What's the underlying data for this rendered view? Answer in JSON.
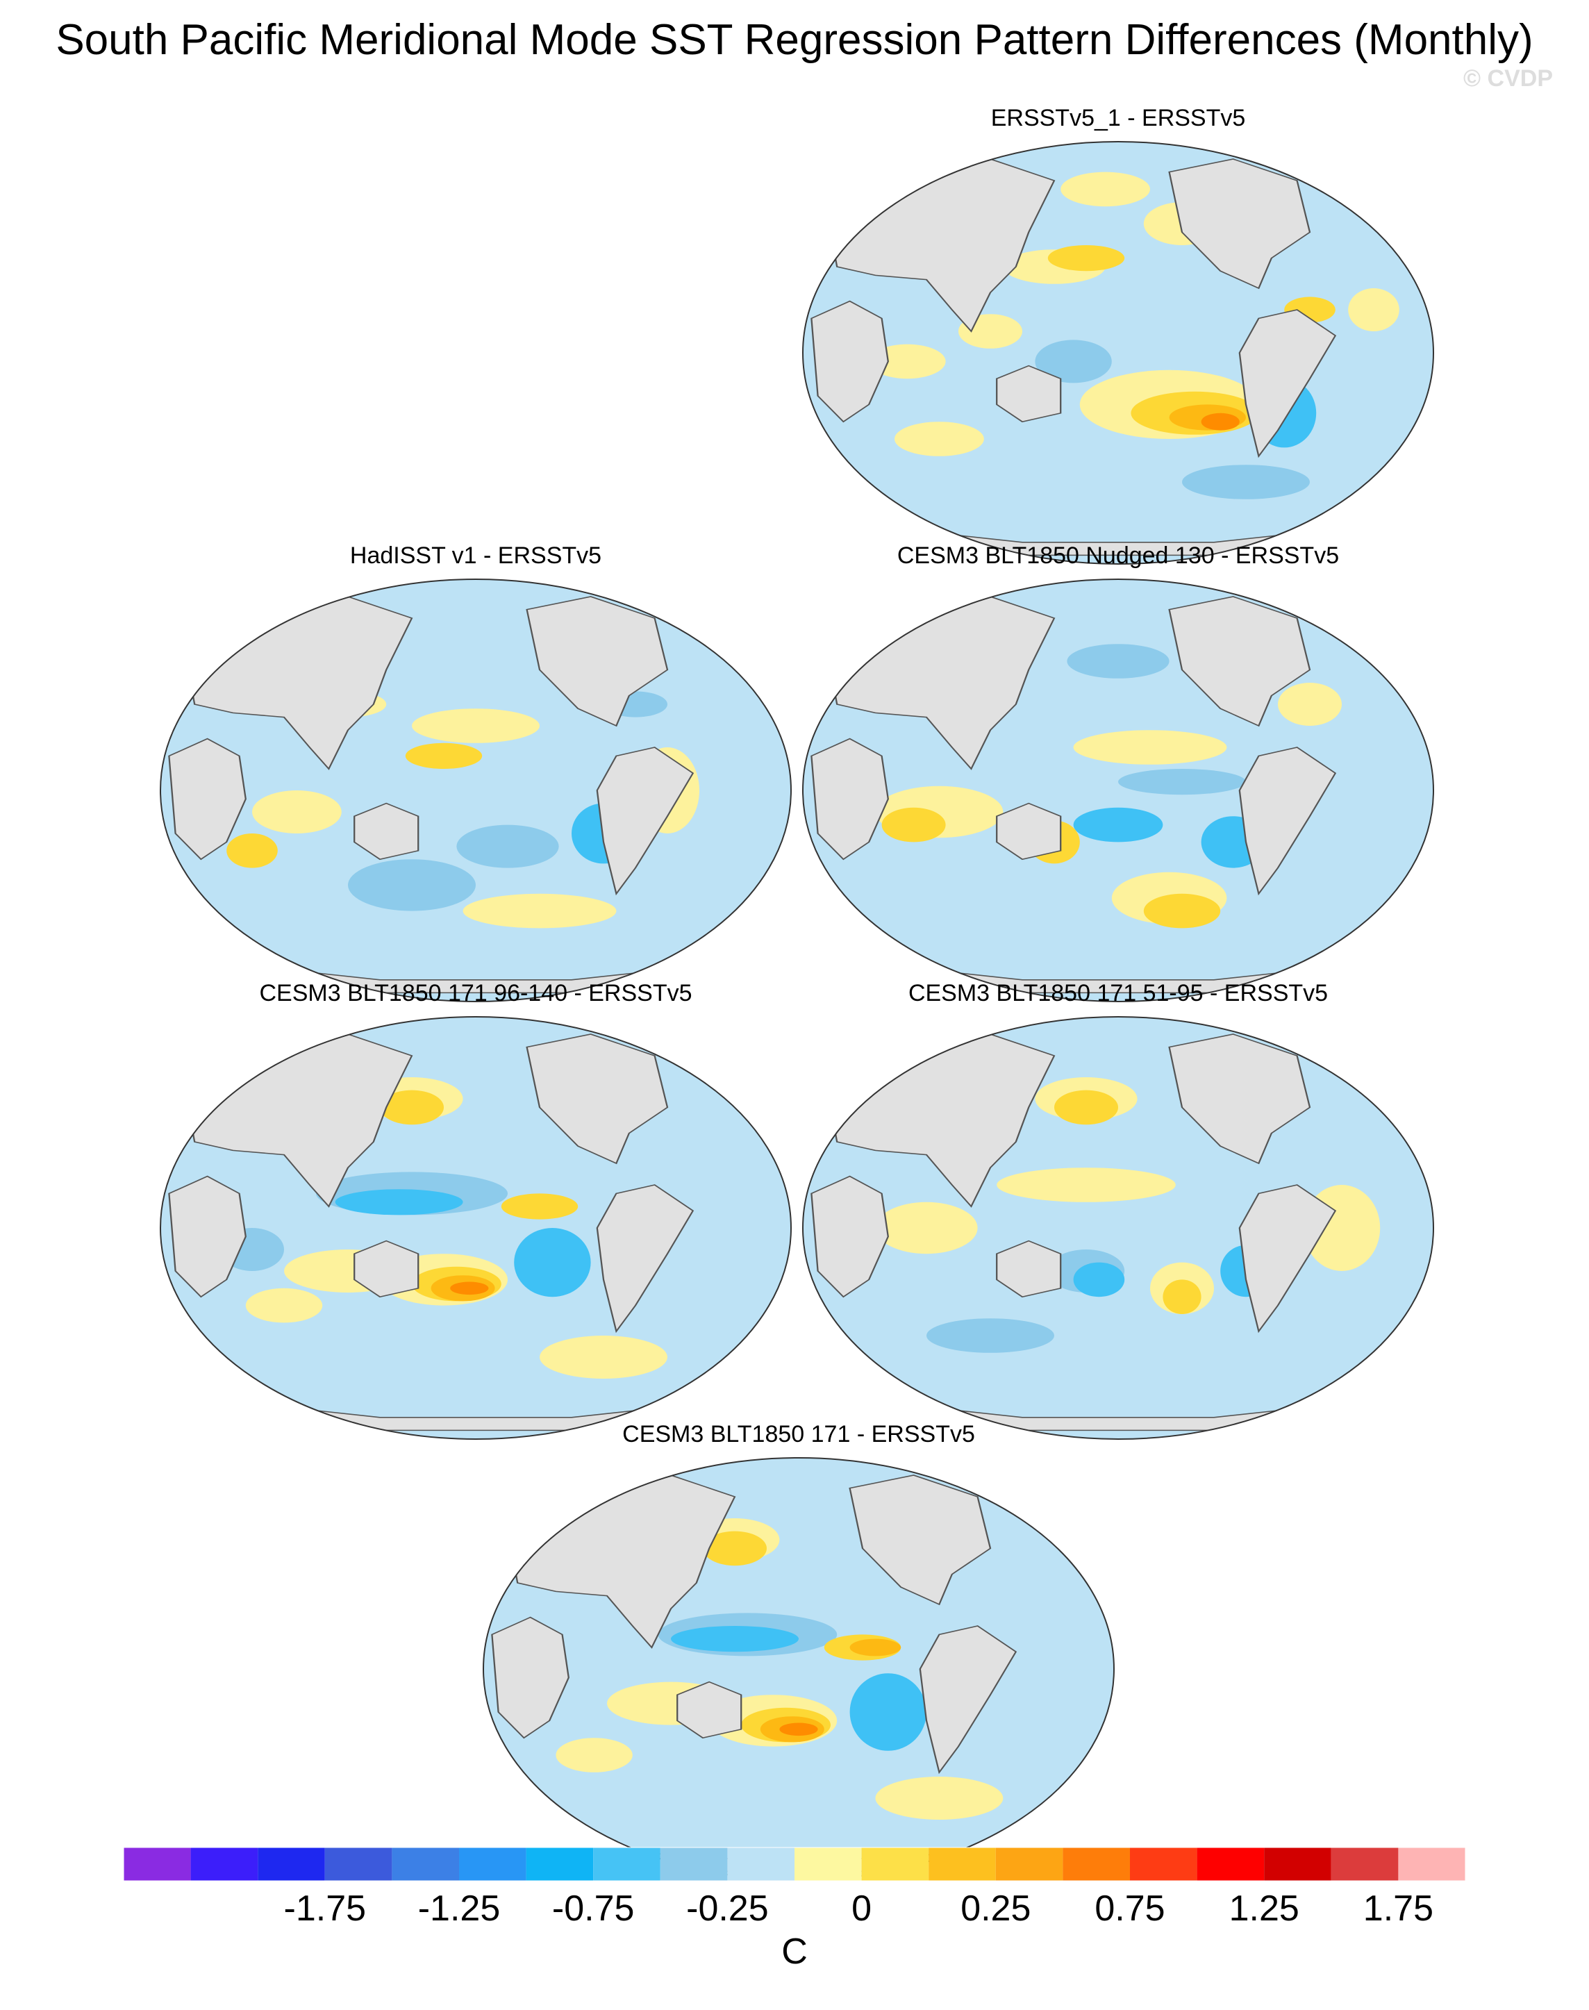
{
  "title": "South Pacific Meridional Mode SST Regression Pattern Differences (Monthly)",
  "watermark": "© CVDP",
  "panels": [
    {
      "id": "p1",
      "title": "ERSSTv5_1 - ERSSTv5",
      "blobs": [
        [
          0.48,
          0.12,
          0.07,
          0.04,
          "#fdf29c"
        ],
        [
          0.43,
          0.52,
          0.06,
          0.05,
          "#8dcbeb"
        ],
        [
          0.3,
          0.45,
          0.05,
          0.04,
          "#fdf29c"
        ],
        [
          0.6,
          0.2,
          0.06,
          0.05,
          "#fdf29c"
        ],
        [
          0.9,
          0.4,
          0.04,
          0.05,
          "#fdf29c"
        ],
        [
          0.58,
          0.62,
          0.14,
          0.08,
          "#fdf29c"
        ],
        [
          0.62,
          0.64,
          0.1,
          0.05,
          "#fdd835"
        ],
        [
          0.64,
          0.65,
          0.06,
          0.03,
          "#fdb913"
        ],
        [
          0.66,
          0.66,
          0.03,
          0.02,
          "#fe8c00"
        ],
        [
          0.76,
          0.64,
          0.05,
          0.08,
          "#3fc1f5"
        ],
        [
          0.22,
          0.7,
          0.07,
          0.04,
          "#fdf29c"
        ],
        [
          0.17,
          0.52,
          0.06,
          0.04,
          "#fdf29c"
        ],
        [
          0.7,
          0.8,
          0.1,
          0.04,
          "#8dcbeb"
        ],
        [
          0.4,
          0.3,
          0.08,
          0.04,
          "#fdf29c"
        ],
        [
          0.45,
          0.28,
          0.06,
          0.03,
          "#fdd835"
        ],
        [
          0.8,
          0.4,
          0.04,
          0.03,
          "#fdd835"
        ]
      ]
    },
    {
      "id": "p2",
      "title": "HadISST v1 - ERSSTv5",
      "blobs": [
        [
          0.5,
          0.35,
          0.1,
          0.04,
          "#fdf29c"
        ],
        [
          0.45,
          0.42,
          0.06,
          0.03,
          "#fdd835"
        ],
        [
          0.7,
          0.6,
          0.05,
          0.07,
          "#3fc1f5"
        ],
        [
          0.55,
          0.63,
          0.08,
          0.05,
          "#8dcbeb"
        ],
        [
          0.22,
          0.55,
          0.07,
          0.05,
          "#fdf29c"
        ],
        [
          0.15,
          0.64,
          0.04,
          0.04,
          "#fdd835"
        ],
        [
          0.4,
          0.72,
          0.1,
          0.06,
          "#8dcbeb"
        ],
        [
          0.6,
          0.78,
          0.12,
          0.04,
          "#fdf29c"
        ],
        [
          0.8,
          0.5,
          0.05,
          0.1,
          "#fdf29c"
        ],
        [
          0.3,
          0.3,
          0.06,
          0.03,
          "#fdf29c"
        ],
        [
          0.75,
          0.3,
          0.05,
          0.03,
          "#8dcbeb"
        ]
      ]
    },
    {
      "id": "p3",
      "title": "CESM3 BLT1850 Nudged 130 - ERSSTv5",
      "blobs": [
        [
          0.5,
          0.2,
          0.08,
          0.04,
          "#8dcbeb"
        ],
        [
          0.55,
          0.4,
          0.12,
          0.04,
          "#fdf29c"
        ],
        [
          0.6,
          0.48,
          0.1,
          0.03,
          "#8dcbeb"
        ],
        [
          0.5,
          0.58,
          0.07,
          0.04,
          "#3fc1f5"
        ],
        [
          0.68,
          0.62,
          0.05,
          0.06,
          "#3fc1f5"
        ],
        [
          0.58,
          0.75,
          0.09,
          0.06,
          "#fdf29c"
        ],
        [
          0.6,
          0.78,
          0.06,
          0.04,
          "#fdd835"
        ],
        [
          0.22,
          0.55,
          0.1,
          0.06,
          "#fdf29c"
        ],
        [
          0.18,
          0.58,
          0.05,
          0.04,
          "#fdd835"
        ],
        [
          0.4,
          0.62,
          0.04,
          0.05,
          "#fdd835"
        ],
        [
          0.8,
          0.3,
          0.05,
          0.05,
          "#fdf29c"
        ],
        [
          0.7,
          0.15,
          0.06,
          0.03,
          "#fdd835"
        ]
      ]
    },
    {
      "id": "p4",
      "title": "CESM3 BLT1850 171 96-140 - ERSSTv5",
      "blobs": [
        [
          0.4,
          0.2,
          0.08,
          0.05,
          "#fdf29c"
        ],
        [
          0.4,
          0.22,
          0.05,
          0.04,
          "#fdd835"
        ],
        [
          0.4,
          0.42,
          0.15,
          0.05,
          "#8dcbeb"
        ],
        [
          0.38,
          0.44,
          0.1,
          0.03,
          "#3fc1f5"
        ],
        [
          0.6,
          0.45,
          0.06,
          0.03,
          "#fdd835"
        ],
        [
          0.3,
          0.6,
          0.1,
          0.05,
          "#fdf29c"
        ],
        [
          0.45,
          0.62,
          0.1,
          0.06,
          "#fdf29c"
        ],
        [
          0.47,
          0.63,
          0.07,
          0.04,
          "#fdd835"
        ],
        [
          0.48,
          0.64,
          0.05,
          0.03,
          "#fdb913"
        ],
        [
          0.49,
          0.64,
          0.03,
          0.015,
          "#fe8c00"
        ],
        [
          0.62,
          0.58,
          0.06,
          0.08,
          "#3fc1f5"
        ],
        [
          0.7,
          0.8,
          0.1,
          0.05,
          "#fdf29c"
        ],
        [
          0.15,
          0.55,
          0.05,
          0.05,
          "#8dcbeb"
        ],
        [
          0.2,
          0.68,
          0.06,
          0.04,
          "#fdf29c"
        ]
      ]
    },
    {
      "id": "p5",
      "title": "CESM3 BLT1850 171 51-95 - ERSSTv5",
      "blobs": [
        [
          0.45,
          0.2,
          0.08,
          0.05,
          "#fdf29c"
        ],
        [
          0.45,
          0.22,
          0.05,
          0.04,
          "#fdd835"
        ],
        [
          0.45,
          0.4,
          0.14,
          0.04,
          "#fdf29c"
        ],
        [
          0.45,
          0.6,
          0.06,
          0.05,
          "#8dcbeb"
        ],
        [
          0.47,
          0.62,
          0.04,
          0.04,
          "#3fc1f5"
        ],
        [
          0.6,
          0.64,
          0.05,
          0.06,
          "#fdf29c"
        ],
        [
          0.6,
          0.66,
          0.03,
          0.04,
          "#fdd835"
        ],
        [
          0.7,
          0.6,
          0.04,
          0.06,
          "#3fc1f5"
        ],
        [
          0.2,
          0.5,
          0.08,
          0.06,
          "#fdf29c"
        ],
        [
          0.85,
          0.5,
          0.06,
          0.1,
          "#fdf29c"
        ],
        [
          0.3,
          0.75,
          0.1,
          0.04,
          "#8dcbeb"
        ]
      ]
    },
    {
      "id": "p6",
      "title": "CESM3 BLT1850 171 - ERSSTv5",
      "blobs": [
        [
          0.4,
          0.2,
          0.07,
          0.05,
          "#fdf29c"
        ],
        [
          0.4,
          0.22,
          0.05,
          0.04,
          "#fdd835"
        ],
        [
          0.42,
          0.42,
          0.14,
          0.05,
          "#8dcbeb"
        ],
        [
          0.4,
          0.43,
          0.1,
          0.03,
          "#3fc1f5"
        ],
        [
          0.6,
          0.45,
          0.06,
          0.03,
          "#fdd835"
        ],
        [
          0.62,
          0.45,
          0.04,
          0.02,
          "#fdb913"
        ],
        [
          0.3,
          0.58,
          0.1,
          0.05,
          "#fdf29c"
        ],
        [
          0.46,
          0.62,
          0.1,
          0.06,
          "#fdf29c"
        ],
        [
          0.48,
          0.63,
          0.07,
          0.04,
          "#fdd835"
        ],
        [
          0.49,
          0.64,
          0.05,
          0.03,
          "#fdb913"
        ],
        [
          0.5,
          0.64,
          0.03,
          0.015,
          "#fe8c00"
        ],
        [
          0.64,
          0.6,
          0.06,
          0.09,
          "#3fc1f5"
        ],
        [
          0.72,
          0.8,
          0.1,
          0.05,
          "#fdf29c"
        ],
        [
          0.18,
          0.7,
          0.06,
          0.04,
          "#fdf29c"
        ]
      ]
    }
  ],
  "colorbar": {
    "unit": "C",
    "colors": [
      "#8a2be2",
      "#3c1efa",
      "#1e28f0",
      "#3c5adc",
      "#3c80e6",
      "#2896f5",
      "#0fb4f5",
      "#46c3f5",
      "#8dcbeb",
      "#bde2f5",
      "#fdf8a0",
      "#fde048",
      "#fdc01f",
      "#fda514",
      "#fe7d0a",
      "#fe3c14",
      "#fe0000",
      "#d20000",
      "#dc3c3c",
      "#feb4b4"
    ],
    "labels": [
      "-1.75",
      "-1.25",
      "-0.75",
      "-0.25",
      "0",
      "0.25",
      "0.75",
      "1.25",
      "1.75"
    ]
  }
}
